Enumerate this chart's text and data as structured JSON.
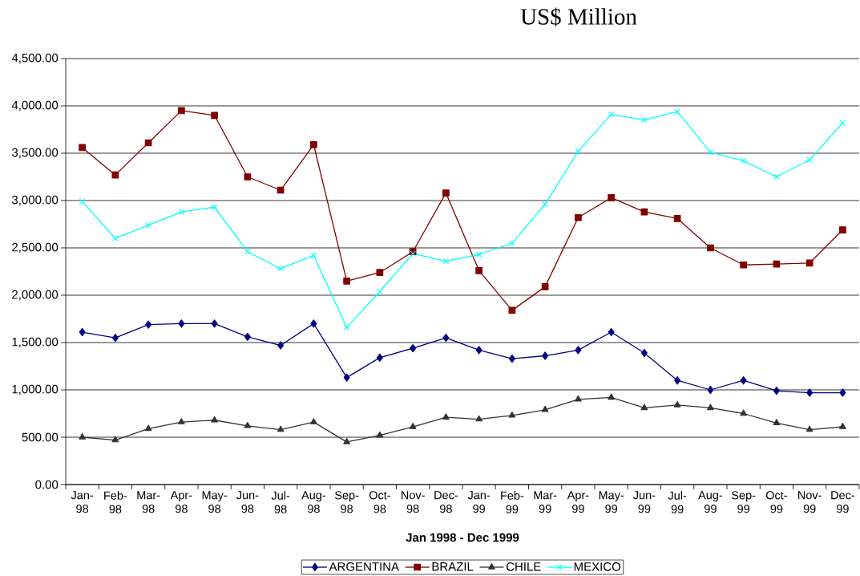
{
  "chart_data": {
    "type": "line",
    "title": "US$ Million",
    "xlabel": "Jan 1998 - Dec 1999",
    "categories": [
      "Jan-98",
      "Feb-98",
      "Mar-98",
      "Apr-98",
      "May-98",
      "Jun-98",
      "Jul-98",
      "Aug-98",
      "Sep-98",
      "Oct-98",
      "Nov-98",
      "Dec-98",
      "Jan-99",
      "Feb-99",
      "Mar-99",
      "Apr-99",
      "May-99",
      "Jun-99",
      "Jul-99",
      "Aug-99",
      "Sep-99",
      "Oct-99",
      "Nov-99",
      "Dec-99"
    ],
    "series": [
      {
        "name": "ARGENTINA",
        "color": "#000080",
        "marker": "diamond",
        "values": [
          1610,
          1550,
          1690,
          1700,
          1700,
          1560,
          1470,
          1700,
          1130,
          1340,
          1440,
          1550,
          1420,
          1330,
          1360,
          1420,
          1610,
          1390,
          1100,
          1000,
          1100,
          990,
          970,
          970
        ]
      },
      {
        "name": "BRAZIL",
        "color": "#800000",
        "marker": "square",
        "values": [
          3560,
          3270,
          3610,
          3950,
          3900,
          3250,
          3110,
          3590,
          2150,
          2240,
          2460,
          3080,
          2260,
          1840,
          2090,
          2820,
          3030,
          2880,
          2810,
          2500,
          2320,
          2330,
          2340,
          2690
        ]
      },
      {
        "name": "CHILE",
        "color": "#333333",
        "marker": "triangle",
        "values": [
          500,
          470,
          590,
          660,
          680,
          620,
          580,
          660,
          450,
          520,
          610,
          710,
          690,
          730,
          790,
          900,
          920,
          810,
          840,
          810,
          750,
          650,
          580,
          610
        ]
      },
      {
        "name": "MEXICO",
        "color": "#00ffff",
        "marker": "cross",
        "values": [
          2990,
          2600,
          2740,
          2880,
          2930,
          2460,
          2280,
          2420,
          1660,
          2040,
          2440,
          2360,
          2430,
          2550,
          2960,
          3520,
          3910,
          3850,
          3940,
          3510,
          3420,
          3250,
          3430,
          3820
        ]
      }
    ],
    "ylim": [
      0,
      4500
    ],
    "yticks": [
      {
        "value": 0,
        "label": "0.00"
      },
      {
        "value": 500,
        "label": "500.00"
      },
      {
        "value": 1000,
        "label": "1,000.00"
      },
      {
        "value": 1500,
        "label": "1,500.00"
      },
      {
        "value": 2000,
        "label": "2,000.00"
      },
      {
        "value": 2500,
        "label": "2,500.00"
      },
      {
        "value": 3000,
        "label": "3,000.00"
      },
      {
        "value": 3500,
        "label": "3,500.00"
      },
      {
        "value": 4000,
        "label": "4,000.00"
      },
      {
        "value": 4500,
        "label": "4,500.00"
      }
    ],
    "grid": "y",
    "legend": "bottom"
  }
}
